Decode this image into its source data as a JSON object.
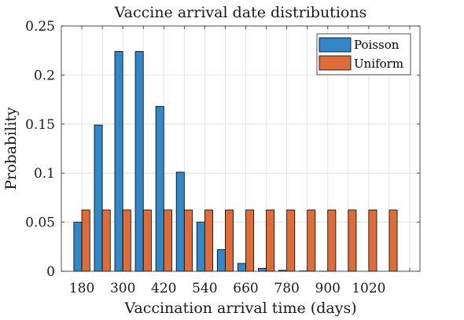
{
  "chart_data": {
    "type": "bar",
    "title": "Vaccine arrival date distributions",
    "xlabel": "Vaccination arrival time (days)",
    "ylabel": "Probability",
    "ylim": [
      0,
      0.25
    ],
    "xlim": [
      120,
      1170
    ],
    "yticks": [
      "0",
      "0.05",
      "0.1",
      "0.15",
      "0.2",
      "0.25"
    ],
    "xticks": [
      "180",
      "300",
      "420",
      "540",
      "660",
      "780",
      "900",
      "1020"
    ],
    "grid": true,
    "legend_position": "top-right",
    "categories": [
      180,
      240,
      300,
      360,
      420,
      480,
      540,
      600,
      660,
      720,
      780,
      840,
      900,
      960,
      1020,
      1080
    ],
    "series": [
      {
        "name": "Poisson",
        "color": "#3288c7",
        "values": [
          0.05,
          0.149,
          0.224,
          0.224,
          0.168,
          0.101,
          0.05,
          0.022,
          0.008,
          0.003,
          0.001,
          0.0003,
          0.0001,
          0.0,
          0.0,
          0.0
        ]
      },
      {
        "name": "Uniform",
        "color": "#dc6d3b",
        "values": [
          0.0625,
          0.0625,
          0.0625,
          0.0625,
          0.0625,
          0.0625,
          0.0625,
          0.0625,
          0.0625,
          0.0625,
          0.0625,
          0.0625,
          0.0625,
          0.0625,
          0.0625,
          0.0625
        ]
      }
    ]
  }
}
